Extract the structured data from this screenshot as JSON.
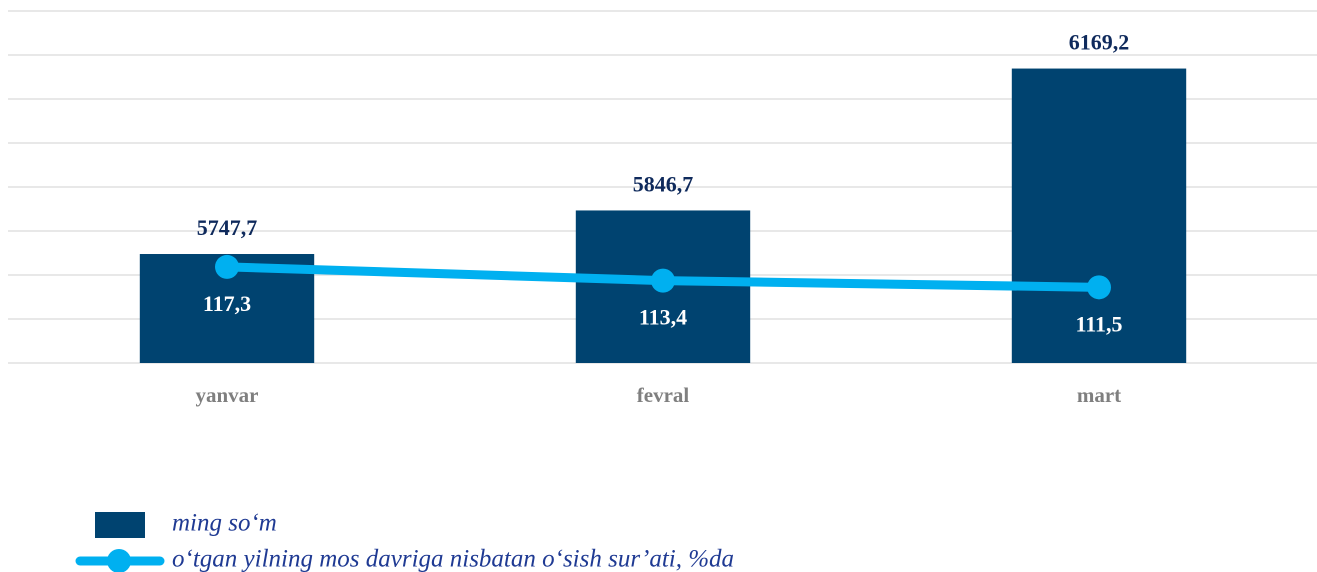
{
  "chart_data": {
    "type": "bar_line",
    "categories": [
      "yanvar",
      "fevral",
      "mart"
    ],
    "series": [
      {
        "name": "ming so‘m",
        "color": "#004370",
        "type": "bar",
        "values": [
          5747.7,
          5846.7,
          6169.2
        ],
        "value_labels": [
          "5747,7",
          "5846,7",
          "6169,2"
        ]
      },
      {
        "name": "o‘tgan yilning mos davriga nisbatan o‘sish sur’ati, %da",
        "color": "#00b0f0",
        "type": "line",
        "axis": "y2",
        "values": [
          117.3,
          113.4,
          111.5
        ],
        "value_labels": [
          "117,3",
          "113,4",
          "111,5"
        ]
      }
    ],
    "ylim": [
      5500,
      6300
    ],
    "yticks": [
      5500,
      5600,
      5700,
      5800,
      5900,
      6000,
      6100,
      6200,
      6300
    ],
    "y2lim": [
      90,
      190
    ],
    "grid": true
  }
}
